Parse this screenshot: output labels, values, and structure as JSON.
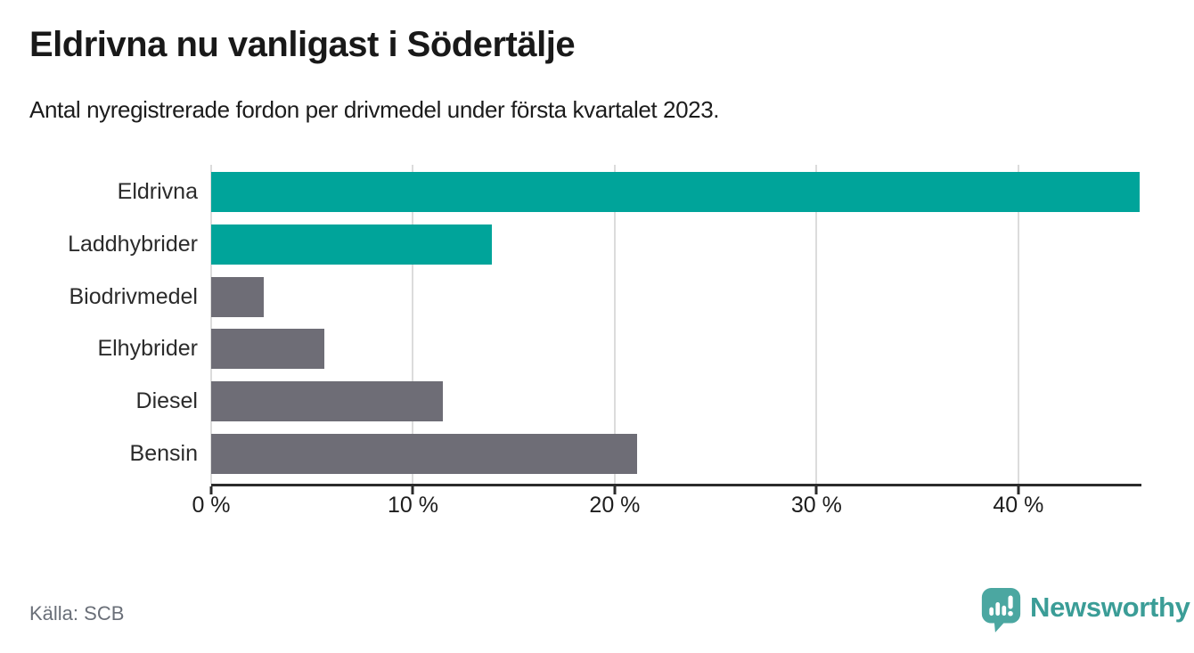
{
  "title": "Eldrivna nu vanligast i Södertälje",
  "subtitle": "Antal nyregistrerade fordon per drivmedel under första kvartalet 2023.",
  "source": "Källa: SCB",
  "brand": {
    "name": "Newsworthy",
    "icon": "newsworthy-speech-bubble-barchart-icon",
    "wordmark_color": "#3b9d97",
    "icon_color": "#4ba7a1"
  },
  "colors": {
    "highlight_bar": "#00a49a",
    "default_bar": "#6e6d76",
    "gridline": "#dcdcdc",
    "axis": "#2b2b2b",
    "text": "#1c1c1c",
    "muted_text": "#6a6f78"
  },
  "chart_data": {
    "type": "bar",
    "orientation": "horizontal",
    "title": "Eldrivna nu vanligast i Södertälje",
    "subtitle": "Antal nyregistrerade fordon per drivmedel under första kvartalet 2023.",
    "categories": [
      "Eldrivna",
      "Laddhybrider",
      "Biodrivmedel",
      "Elhybrider",
      "Diesel",
      "Bensin"
    ],
    "values": [
      46.0,
      13.9,
      2.6,
      5.6,
      11.5,
      21.1
    ],
    "unit": "%",
    "bar_colors": [
      "#00a49a",
      "#00a49a",
      "#6e6d76",
      "#6e6d76",
      "#6e6d76",
      "#6e6d76"
    ],
    "xlabel": "",
    "ylabel": "",
    "xlim": [
      0,
      46.1
    ],
    "xticks": [
      0,
      10,
      20,
      30,
      40
    ],
    "xtick_labels": [
      "0 %",
      "10 %",
      "20 %",
      "30 %",
      "40 %"
    ],
    "grid": "vertical",
    "legend": "none"
  }
}
